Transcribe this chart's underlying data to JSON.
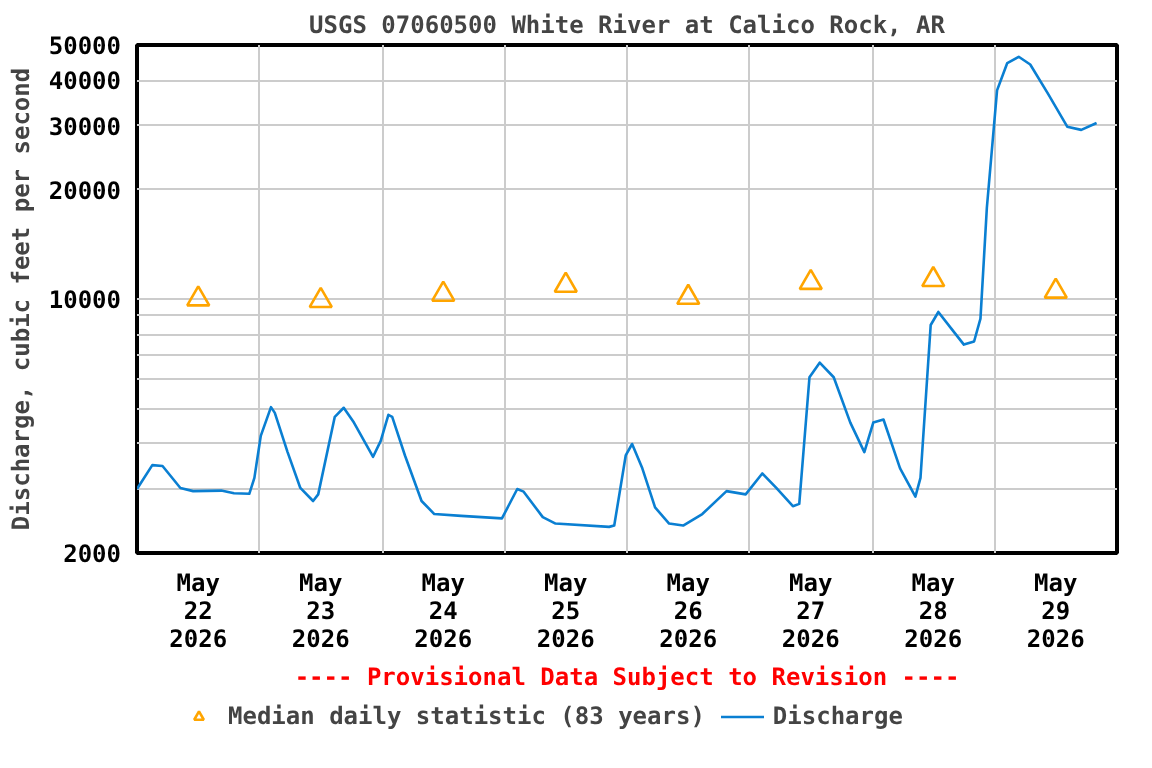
{
  "chart_data": {
    "type": "line",
    "title": "USGS 07060500 White River at Calico Rock, AR",
    "ylabel": "Discharge, cubic feet per second",
    "annotations": [
      "---- Provisional Data Subject to Revision ----"
    ],
    "log": "y",
    "grid": true,
    "legend": "bottom",
    "xlim": [
      "2026-05-22T00:00",
      "2026-05-30T00:00"
    ],
    "xticks": [
      {
        "value": "2026-05-22T00:00",
        "label": null
      },
      {
        "value": "2026-05-22T12:00",
        "label": "May\n22\n2026"
      },
      {
        "value": "2026-05-23T00:00",
        "label": null
      },
      {
        "value": "2026-05-23T12:00",
        "label": "May\n23\n2026"
      },
      {
        "value": "2026-05-24T00:00",
        "label": null
      },
      {
        "value": "2026-05-24T12:00",
        "label": "May\n24\n2026"
      },
      {
        "value": "2026-05-25T00:00",
        "label": null
      },
      {
        "value": "2026-05-25T12:00",
        "label": "May\n25\n2026"
      },
      {
        "value": "2026-05-26T00:00",
        "label": null
      },
      {
        "value": "2026-05-26T12:00",
        "label": "May\n26\n2026"
      },
      {
        "value": "2026-05-27T00:00",
        "label": null
      },
      {
        "value": "2026-05-27T12:00",
        "label": "May\n27\n2026"
      },
      {
        "value": "2026-05-28T00:00",
        "label": null
      },
      {
        "value": "2026-05-28T12:00",
        "label": "May\n28\n2026"
      },
      {
        "value": "2026-05-29T00:00",
        "label": null
      },
      {
        "value": "2026-05-29T12:00",
        "label": "May\n29\n2026"
      },
      {
        "value": "2026-05-30T00:00",
        "label": null
      }
    ],
    "ylim": [
      2000,
      50000
    ],
    "yticks": [
      2000,
      {
        "value": 3000,
        "label": null
      },
      {
        "value": 4000,
        "label": null
      },
      {
        "value": 5000,
        "label": null
      },
      {
        "value": 6000,
        "label": null
      },
      {
        "value": 7000,
        "label": null
      },
      {
        "value": 8000,
        "label": null
      },
      {
        "value": 9000,
        "label": null
      },
      10000,
      20000,
      30000,
      40000,
      50000
    ],
    "series": [
      {
        "name": "Median daily statistic (83 years)",
        "type": "scatter",
        "marker": "triangle",
        "color": "#ffa500",
        "x": [
          "2026-05-22T12:00",
          "2026-05-23T12:00",
          "2026-05-24T12:00",
          "2026-05-25T12:00",
          "2026-05-26T12:00",
          "2026-05-27T12:00",
          "2026-05-28T12:00",
          "2026-05-29T12:00"
        ],
        "values": [
          10000,
          9900,
          10300,
          10900,
          10100,
          11100,
          11300,
          10500
        ]
      },
      {
        "name": "Discharge",
        "line_style": "solid",
        "color": "#0a7fd2",
        "x": [
          "2026-05-22T00:00",
          "2026-05-22T03:00",
          "2026-05-22T05:00",
          "2026-05-22T08:30",
          "2026-05-22T11:00",
          "2026-05-22T16:30",
          "2026-05-22T19:00",
          "2026-05-22T22:00",
          "2026-05-22T23:00",
          "2026-05-23T00:15",
          "2026-05-23T02:15",
          "2026-05-23T03:00",
          "2026-05-23T05:30",
          "2026-05-23T08:00",
          "2026-05-23T10:30",
          "2026-05-23T11:30",
          "2026-05-23T14:45",
          "2026-05-23T16:30",
          "2026-05-23T18:30",
          "2026-05-23T22:15",
          "2026-05-23T23:45",
          "2026-05-24T01:15",
          "2026-05-24T02:00",
          "2026-05-24T04:30",
          "2026-05-24T07:45",
          "2026-05-24T10:15",
          "2026-05-24T15:30",
          "2026-05-24T23:30",
          "2026-05-25T02:30",
          "2026-05-25T03:45",
          "2026-05-25T07:30",
          "2026-05-25T10:00",
          "2026-05-25T20:30",
          "2026-05-25T21:30",
          "2026-05-25T23:45",
          "2026-05-26T01:00",
          "2026-05-26T03:00",
          "2026-05-26T05:30",
          "2026-05-26T08:15",
          "2026-05-26T11:00",
          "2026-05-26T14:45",
          "2026-05-26T19:30",
          "2026-05-26T23:15",
          "2026-05-27T02:30",
          "2026-05-27T05:15",
          "2026-05-27T08:30",
          "2026-05-27T09:45",
          "2026-05-27T11:45",
          "2026-05-27T13:45",
          "2026-05-27T16:30",
          "2026-05-27T19:45",
          "2026-05-27T22:30",
          "2026-05-28T00:15",
          "2026-05-28T02:15",
          "2026-05-28T05:30",
          "2026-05-28T08:30",
          "2026-05-28T09:30",
          "2026-05-28T11:30",
          "2026-05-28T13:00",
          "2026-05-28T16:00",
          "2026-05-28T18:00",
          "2026-05-28T20:00",
          "2026-05-28T21:15",
          "2026-05-28T22:30",
          "2026-05-29T00:30",
          "2026-05-29T02:30",
          "2026-05-29T04:45",
          "2026-05-29T07:00",
          "2026-05-29T10:30",
          "2026-05-29T14:15",
          "2026-05-29T17:00",
          "2026-05-29T20:00"
        ],
        "values": [
          3000,
          3490,
          3470,
          3020,
          2960,
          2970,
          2920,
          2910,
          3220,
          4200,
          5040,
          4860,
          3790,
          3020,
          2780,
          2900,
          4740,
          5020,
          4570,
          3680,
          4070,
          4800,
          4740,
          3710,
          2780,
          2560,
          2530,
          2490,
          3000,
          2950,
          2510,
          2410,
          2360,
          2380,
          3710,
          3990,
          3420,
          2670,
          2410,
          2380,
          2560,
          2960,
          2900,
          3310,
          3020,
          2690,
          2730,
          6090,
          6680,
          6090,
          4570,
          3790,
          4570,
          4660,
          3420,
          2860,
          3220,
          8480,
          9210,
          8130,
          7490,
          7640,
          8830,
          17800,
          37500,
          44600,
          46400,
          44200,
          36700,
          29800,
          29200,
          30500
        ]
      }
    ]
  }
}
